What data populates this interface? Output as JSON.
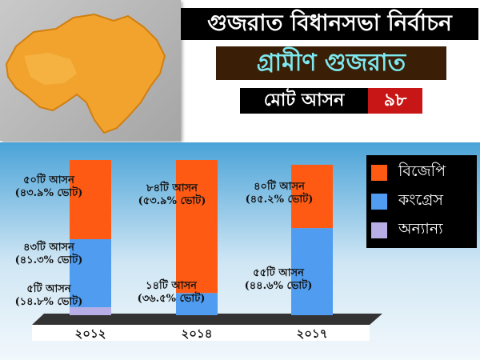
{
  "header": {
    "title": "গুজরাত বিধানসভা নির্বাচন",
    "subtitle": "গ্রামীণ গুজরাত",
    "total_label": "মোট আসন",
    "total_value": "৯৮"
  },
  "map_icon": "gujarat-map-icon",
  "colors": {
    "bjp": "#ff5a14",
    "congress": "#4f9cf0",
    "others": "#b8aee6",
    "map": "#f2a32e",
    "title_bg": "#000000",
    "subtitle_bg": "#3a1f06",
    "subtitle_text": "#7de8ef",
    "total_value_bg": "#c81515"
  },
  "legend": [
    {
      "key": "bjp",
      "label": "বিজেপি"
    },
    {
      "key": "congress",
      "label": "কংগ্রেস"
    },
    {
      "key": "others",
      "label": "অন্যান্য"
    }
  ],
  "annotations": {
    "y2012_bjp": [
      "৫০টি আসন",
      "(৪৩.৯% ভোট)"
    ],
    "y2012_congress": [
      "৪৩টি আসন",
      "(৪১.৩% ভোট)"
    ],
    "y2012_others": [
      "৫টি আসন",
      "(১৪.৮% ভোট)"
    ],
    "y2014_bjp": [
      "৮৪টি আসন",
      "(৫৩.৯% ভোট)"
    ],
    "y2014_congress": [
      "১৪টি আসন",
      "(৩৬.৫% ভোট)"
    ],
    "y2017_bjp": [
      "৪০টি আসন",
      "(৪৫.২% ভোট)"
    ],
    "y2017_congress": [
      "৫৫টি আসন",
      "(৪৪.৬% ভোট)"
    ]
  },
  "chart_data": {
    "type": "bar",
    "stacked": true,
    "categories": [
      "২০১২",
      "২০১৪",
      "২০১৭"
    ],
    "series": [
      {
        "name": "অন্যান্য",
        "key": "others",
        "values": [
          5,
          0,
          0
        ]
      },
      {
        "name": "কংগ্রেস",
        "key": "congress",
        "values": [
          43,
          14,
          55
        ]
      },
      {
        "name": "বিজেপি",
        "key": "bjp",
        "values": [
          50,
          84,
          40
        ]
      }
    ],
    "vote_share_percent": {
      "বিজেপি": [
        43.9,
        53.9,
        45.2
      ],
      "কংগ্রেস": [
        41.3,
        36.5,
        44.6
      ],
      "অন্যান্য": [
        14.8,
        null,
        null
      ]
    },
    "ylim": [
      0,
      98
    ],
    "grid": false,
    "legend_position": "top-right"
  }
}
